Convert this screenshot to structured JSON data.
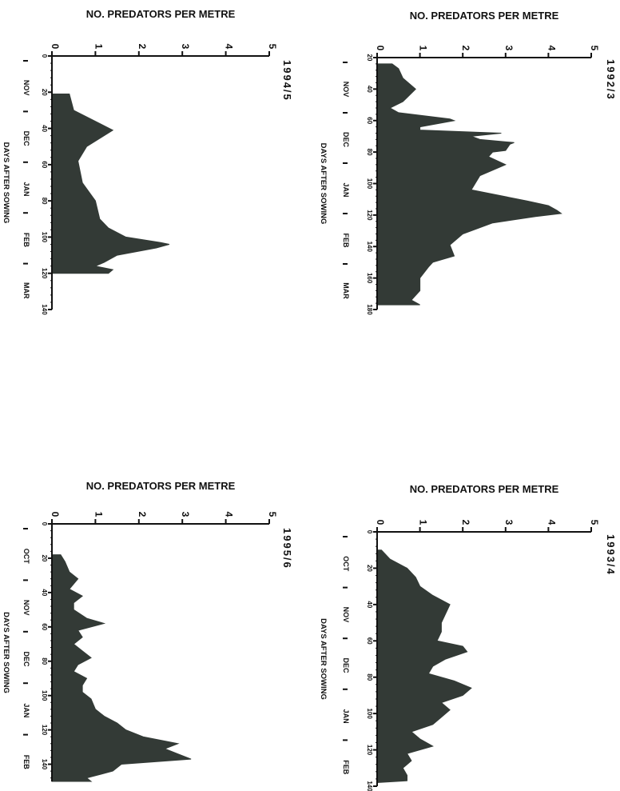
{
  "chart_data": [
    {
      "type": "area",
      "title": "1992/3",
      "ylabel": "NO. PREDATORS PER METRE",
      "xlabel": "DAYS AFTER SOWING",
      "ylim": [
        0,
        5
      ],
      "yticks": [
        "0",
        "1",
        "2",
        "3",
        "4",
        "5"
      ],
      "xlim": [
        20,
        180
      ],
      "xticks": [
        "20",
        "40",
        "60",
        "80",
        "100",
        "120",
        "140",
        "160",
        "180"
      ],
      "months": [
        "NOV",
        "DEC",
        "JAN",
        "FEB",
        "MAR"
      ],
      "fill_color": "#333a36",
      "series": [
        {
          "x": [
            24,
            27,
            33,
            40,
            48,
            52,
            55,
            59,
            60,
            64,
            66,
            68,
            70,
            72,
            74,
            75,
            79,
            80,
            83,
            88,
            95,
            104,
            111,
            114,
            117,
            119,
            121,
            125,
            132,
            139,
            146,
            150,
            153,
            160,
            168,
            174,
            177,
            177
          ],
          "values": [
            0.35,
            0.5,
            0.6,
            0.9,
            0.6,
            0.3,
            0.5,
            1.7,
            1.8,
            1.0,
            1.0,
            2.9,
            2.2,
            2.4,
            3.2,
            3.1,
            3.0,
            2.7,
            2.6,
            3.0,
            2.4,
            2.2,
            3.5,
            4.0,
            4.2,
            4.3,
            3.7,
            2.7,
            2.0,
            1.7,
            1.8,
            1.3,
            1.2,
            1.0,
            1.0,
            0.8,
            1.0,
            0.0
          ]
        }
      ]
    },
    {
      "type": "area",
      "title": "1994/5",
      "ylabel": "NO. PREDATORS PER METRE",
      "xlabel": "DAYS AFTER SOWING",
      "ylim": [
        0,
        5
      ],
      "yticks": [
        "0",
        "1",
        "2",
        "3",
        "4",
        "5"
      ],
      "xlim": [
        0,
        140
      ],
      "xticks": [
        "0",
        "20",
        "40",
        "60",
        "80",
        "100",
        "120",
        "140"
      ],
      "months": [
        "NOV",
        "DEC",
        "JAN",
        "FEB",
        "MAR"
      ],
      "fill_color": "#333a36",
      "series": [
        {
          "x": [
            21,
            30,
            41,
            50,
            58,
            70,
            80,
            90,
            95,
            100,
            103,
            104,
            106,
            110,
            114,
            116,
            118,
            120,
            120
          ],
          "values": [
            0.4,
            0.5,
            1.4,
            0.8,
            0.6,
            0.7,
            1.0,
            1.1,
            1.3,
            1.7,
            2.5,
            2.7,
            2.4,
            1.5,
            1.2,
            1.0,
            1.4,
            1.3,
            0.0
          ]
        }
      ]
    },
    {
      "type": "area",
      "title": "1993/4",
      "ylabel": "NO. PREDATORS PER METRE",
      "xlabel": "DAYS AFTER SOWING",
      "ylim": [
        0,
        5
      ],
      "yticks": [
        "0",
        "1",
        "2",
        "3",
        "4",
        "5"
      ],
      "xlim": [
        0,
        140
      ],
      "xticks": [
        "0",
        "20",
        "40",
        "60",
        "80",
        "100",
        "120",
        "140"
      ],
      "months": [
        "OCT",
        "NOV",
        "DEC",
        "JAN",
        "FEB"
      ],
      "fill_color": "#333a36",
      "series": [
        {
          "x": [
            10,
            15,
            20,
            25,
            30,
            35,
            40,
            45,
            50,
            55,
            60,
            63,
            66,
            70,
            74,
            78,
            82,
            86,
            90,
            94,
            98,
            102,
            106,
            110,
            114,
            118,
            122,
            126,
            130,
            134,
            137,
            138
          ],
          "values": [
            0.1,
            0.3,
            0.7,
            0.9,
            1.0,
            1.3,
            1.7,
            1.6,
            1.5,
            1.5,
            1.4,
            2.0,
            2.1,
            1.6,
            1.3,
            1.2,
            1.8,
            2.2,
            2.0,
            1.5,
            1.7,
            1.5,
            1.3,
            0.8,
            1.0,
            1.3,
            0.7,
            0.8,
            0.6,
            0.7,
            0.7,
            0.0
          ]
        }
      ]
    },
    {
      "type": "area",
      "title": "1995/6",
      "ylabel": "NO. PREDATORS PER METRE",
      "xlabel": "DAYS AFTER SOWING",
      "ylim": [
        0,
        5
      ],
      "yticks": [
        "0",
        "1",
        "2",
        "3",
        "4",
        "5"
      ],
      "xlim": [
        0,
        150
      ],
      "xticks": [
        "0",
        "20",
        "40",
        "60",
        "80",
        "100",
        "120",
        "140"
      ],
      "months": [
        "OCT",
        "NOV",
        "DEC",
        "JAN",
        "FEB"
      ],
      "fill_color": "#333a36",
      "series": [
        {
          "x": [
            18,
            22,
            28,
            32,
            38,
            42,
            46,
            50,
            55,
            58,
            62,
            66,
            70,
            74,
            78,
            82,
            86,
            90,
            94,
            98,
            102,
            108,
            112,
            116,
            120,
            124,
            128,
            131,
            134,
            137,
            140,
            144,
            148,
            150,
            150
          ],
          "values": [
            0.2,
            0.3,
            0.4,
            0.6,
            0.4,
            0.7,
            0.5,
            0.5,
            0.8,
            1.2,
            0.6,
            0.7,
            0.5,
            0.7,
            0.9,
            0.6,
            0.5,
            0.8,
            0.7,
            0.7,
            0.9,
            1.0,
            1.2,
            1.5,
            1.7,
            2.1,
            2.9,
            2.6,
            2.9,
            3.2,
            1.6,
            1.4,
            0.8,
            0.9,
            0.0
          ]
        }
      ]
    }
  ]
}
